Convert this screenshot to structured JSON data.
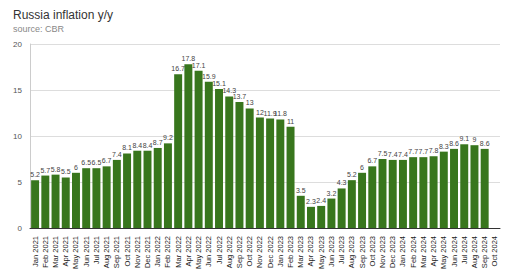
{
  "chart_data": {
    "type": "bar",
    "title": "Russia inflation y/y",
    "subtitle": "source: CBR",
    "categories": [
      "Jan 2021",
      "Feb 2021",
      "Mar 2021",
      "Apr 2021",
      "May 2021",
      "Jun 2021",
      "Jul 2021",
      "Aug 2021",
      "Sep 2021",
      "Oct 2021",
      "Nov 2021",
      "Dec 2021",
      "Jan 2022",
      "Feb 2022",
      "Mar 2022",
      "Apr 2022",
      "May 2022",
      "Jun 2022",
      "Jul 2022",
      "Aug 2022",
      "Sep 2022",
      "Oct 2022",
      "Nov 2022",
      "Dec 2022",
      "Jan 2023",
      "Feb 2023",
      "Mar 2023",
      "Apr 2023",
      "May 2023",
      "Jun 2023",
      "Jul 2023",
      "Aug 2023",
      "Sep 2023",
      "Oct 2023",
      "Nov 2023",
      "Dec 2023",
      "Jan 2024",
      "Feb 2024",
      "Mar 2024",
      "Apr 2024",
      "May 2024",
      "Jun 2024",
      "Jul 2024",
      "Aug 2024",
      "Sep 2024",
      "Oct 2024"
    ],
    "values": [
      5.2,
      5.7,
      5.8,
      5.5,
      6.0,
      6.5,
      6.5,
      6.7,
      7.4,
      8.1,
      8.4,
      8.4,
      8.7,
      9.2,
      16.7,
      17.8,
      17.1,
      15.9,
      15.1,
      14.3,
      13.7,
      13,
      12,
      11.9,
      11.8,
      11,
      3.5,
      2.3,
      2.4,
      3.2,
      4.3,
      5.2,
      6,
      6.7,
      7.5,
      7.4,
      7.4,
      7.7,
      7.7,
      7.8,
      8.3,
      8.6,
      9.1,
      9,
      8.6,
      null
    ],
    "color": "#38761d",
    "ylim": [
      0,
      20
    ],
    "yticks": [
      0,
      5,
      10,
      15,
      20
    ],
    "grid": true,
    "data_labels": true
  }
}
